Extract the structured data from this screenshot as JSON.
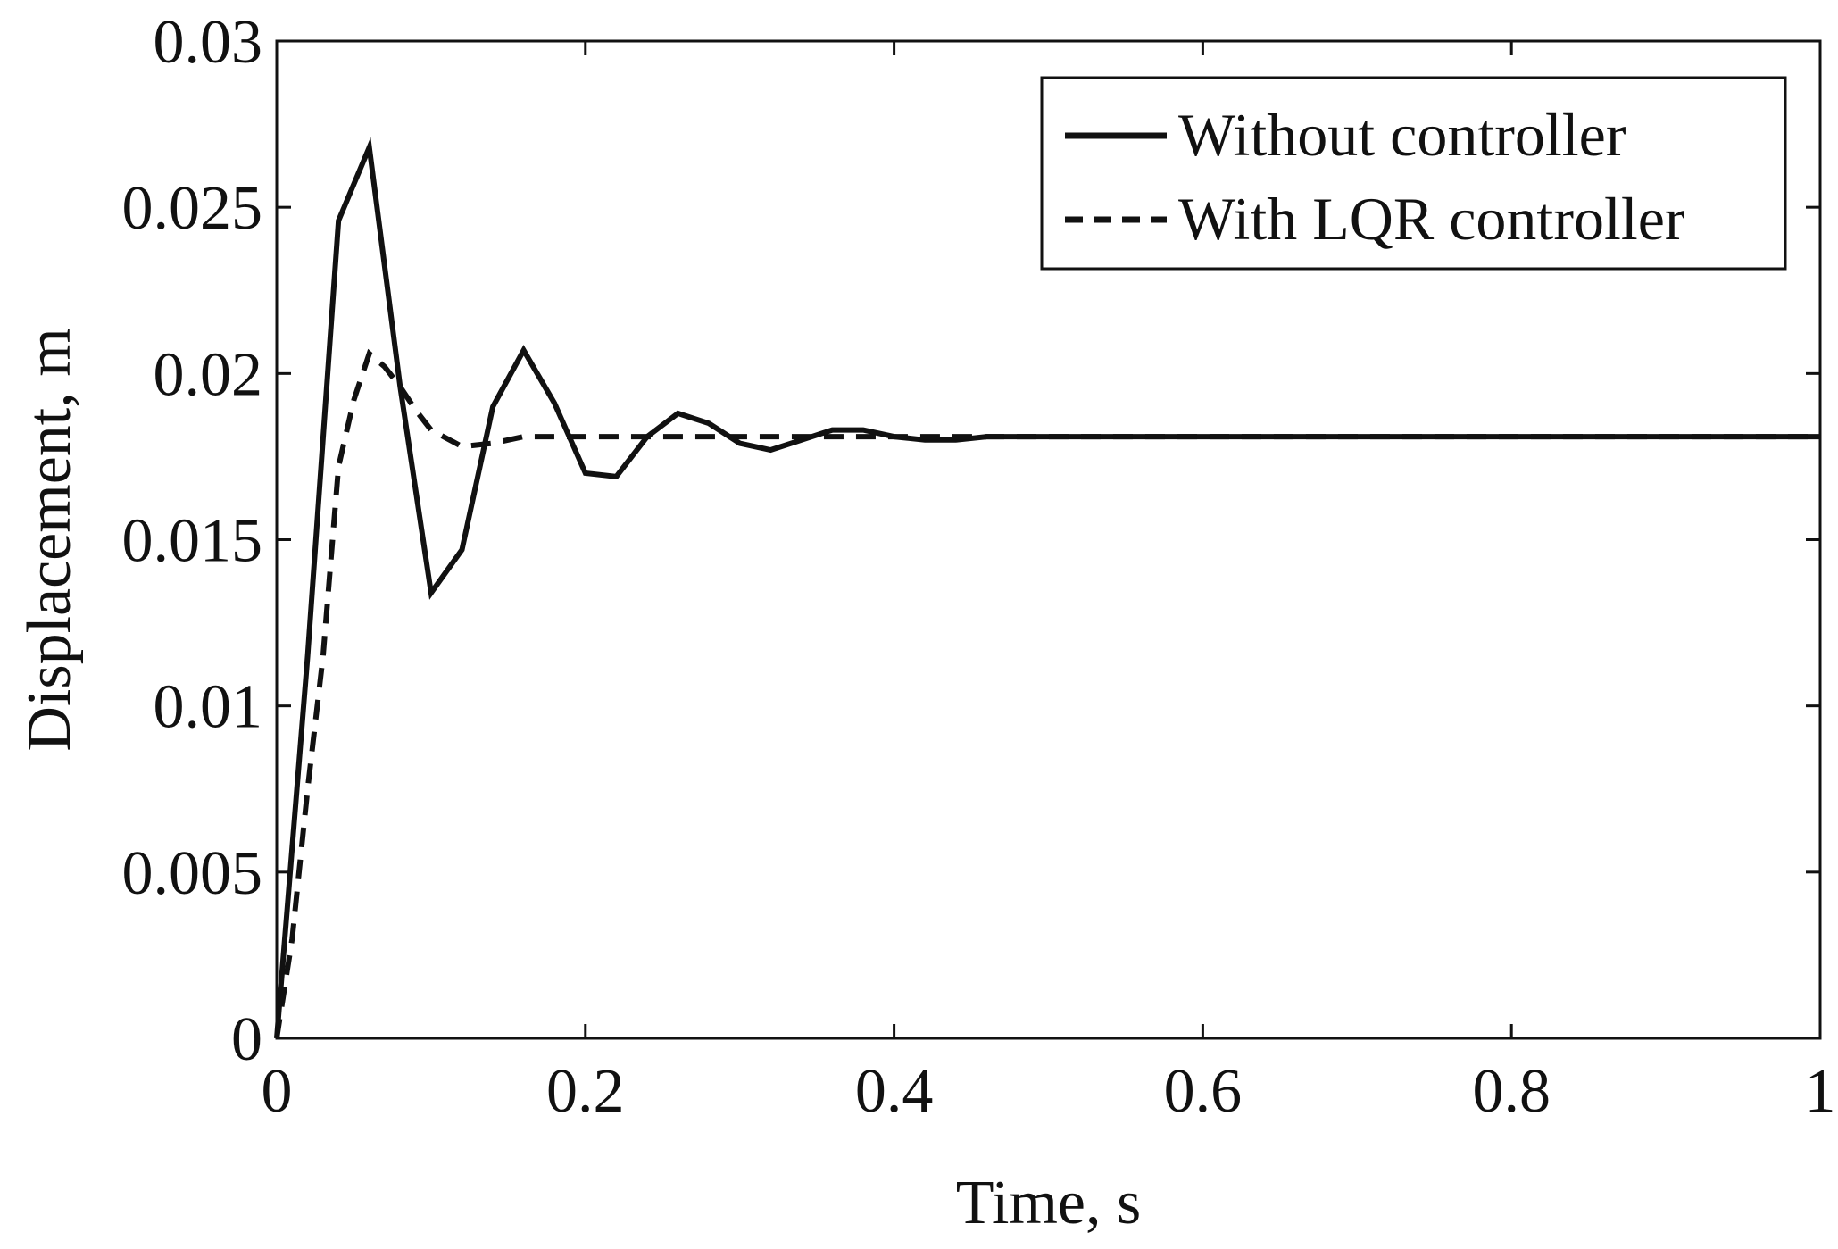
{
  "chart_data": {
    "type": "line",
    "xlabel": "Time, s",
    "ylabel": "Displacement, m",
    "xlim": [
      0,
      1
    ],
    "ylim": [
      0,
      0.03
    ],
    "xticks": [
      0,
      0.2,
      0.4,
      0.6,
      0.8,
      1
    ],
    "xtick_labels": [
      "0",
      "0.2",
      "0.4",
      "0.6",
      "0.8",
      "1"
    ],
    "yticks": [
      0,
      0.005,
      0.01,
      0.015,
      0.02,
      0.025,
      0.03
    ],
    "ytick_labels": [
      "0",
      "0.005",
      "0.01",
      "0.015",
      "0.02",
      "0.025",
      "0.03"
    ],
    "grid": false,
    "legend_position": "top-right",
    "line_color": "#111111",
    "series": [
      {
        "name": "Without controller",
        "style": "solid",
        "x": [
          0,
          0.02,
          0.04,
          0.06,
          0.08,
          0.1,
          0.12,
          0.14,
          0.16,
          0.18,
          0.2,
          0.22,
          0.24,
          0.26,
          0.28,
          0.3,
          0.32,
          0.34,
          0.36,
          0.38,
          0.4,
          0.42,
          0.44,
          0.46,
          0.48,
          0.5,
          0.6,
          0.7,
          0.8,
          0.9,
          1.0
        ],
        "y": [
          0,
          0.0115,
          0.0246,
          0.0268,
          0.0196,
          0.0134,
          0.0147,
          0.019,
          0.0207,
          0.0191,
          0.017,
          0.0169,
          0.0181,
          0.0188,
          0.0185,
          0.0179,
          0.0177,
          0.018,
          0.0183,
          0.0183,
          0.0181,
          0.018,
          0.018,
          0.0181,
          0.0181,
          0.0181,
          0.0181,
          0.0181,
          0.0181,
          0.0181,
          0.0181
        ]
      },
      {
        "name": "With LQR controller",
        "style": "dashed",
        "x": [
          0,
          0.01,
          0.02,
          0.03,
          0.04,
          0.05,
          0.06,
          0.07,
          0.08,
          0.09,
          0.1,
          0.12,
          0.14,
          0.16,
          0.18,
          0.2,
          0.25,
          0.3,
          0.4,
          0.5,
          0.6,
          0.8,
          1.0
        ],
        "y": [
          0,
          0.003,
          0.0075,
          0.0115,
          0.0172,
          0.0192,
          0.0206,
          0.0202,
          0.0196,
          0.0189,
          0.0183,
          0.0178,
          0.0179,
          0.0181,
          0.0181,
          0.0181,
          0.0181,
          0.0181,
          0.0181,
          0.0181,
          0.0181,
          0.0181,
          0.0181
        ]
      }
    ]
  }
}
